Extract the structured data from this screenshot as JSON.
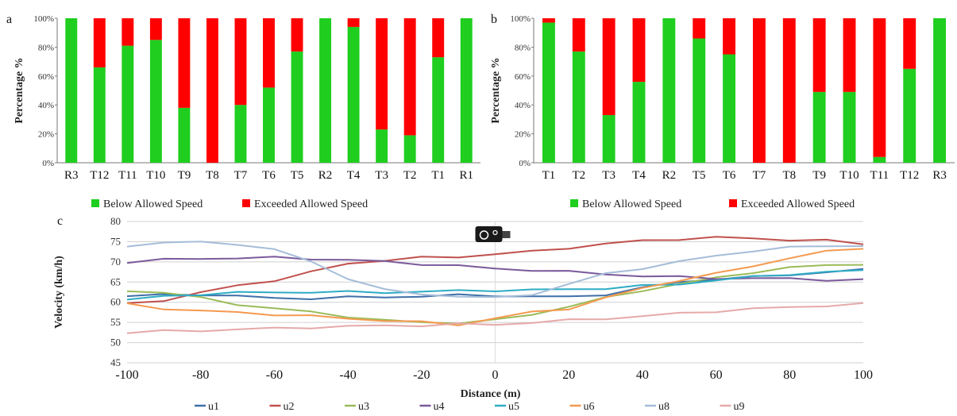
{
  "chart_data": [
    {
      "panel_label": "a",
      "type": "bar",
      "stacked": true,
      "ylabel": "Percentage %",
      "ylim": [
        0,
        100
      ],
      "yticks": [
        "0%",
        "20%",
        "40%",
        "60%",
        "80%",
        "100%"
      ],
      "categories": [
        "R3",
        "T12",
        "T11",
        "T10",
        "T9",
        "T8",
        "T7",
        "T6",
        "T5",
        "R2",
        "T4",
        "T3",
        "T2",
        "T1",
        "R1"
      ],
      "series": [
        {
          "name": "Below Allowed Speed",
          "color": "#1fce1f",
          "values": [
            100,
            66,
            81,
            85,
            38,
            0,
            40,
            52,
            77,
            100,
            94,
            23,
            19,
            73,
            100
          ]
        },
        {
          "name": "Exceeded Allowed Speed",
          "color": "#ff0000",
          "values": [
            0,
            34,
            19,
            15,
            62,
            100,
            60,
            48,
            23,
            0,
            6,
            77,
            81,
            27,
            0
          ]
        }
      ],
      "legend": "bottom"
    },
    {
      "panel_label": "b",
      "type": "bar",
      "stacked": true,
      "ylabel": "Percentage %",
      "ylim": [
        0,
        100
      ],
      "yticks": [
        "0%",
        "20%",
        "40%",
        "60%",
        "80%",
        "100%"
      ],
      "categories": [
        "T1",
        "T2",
        "T3",
        "T4",
        "R2",
        "T5",
        "T6",
        "T7",
        "T8",
        "T9",
        "T10",
        "T11",
        "T12",
        "R3"
      ],
      "series": [
        {
          "name": "Below Allowed Speed",
          "color": "#1fce1f",
          "values": [
            97,
            77,
            33,
            56,
            100,
            86,
            75,
            0,
            0,
            49,
            49,
            4,
            65,
            100
          ]
        },
        {
          "name": "Exceeded Allowed Speed",
          "color": "#ff0000",
          "values": [
            3,
            23,
            67,
            44,
            0,
            14,
            25,
            100,
            100,
            51,
            51,
            96,
            35,
            0
          ]
        }
      ],
      "legend": "bottom"
    },
    {
      "panel_label": "c",
      "type": "line",
      "xlabel": "Distance (m)",
      "ylabel": "Velocity (km/h)",
      "xlim": [
        -100,
        100
      ],
      "ylim": [
        45,
        80
      ],
      "xticks": [
        "-100",
        "-80",
        "-60",
        "-40",
        "-20",
        "0",
        "20",
        "40",
        "60",
        "80",
        "100"
      ],
      "yticks": [
        "45",
        "50",
        "55",
        "60",
        "65",
        "70",
        "75",
        "80"
      ],
      "grid": true,
      "annotation": "camera-icon",
      "x": [
        -100,
        -90,
        -80,
        -70,
        -60,
        -50,
        -40,
        -30,
        -20,
        -10,
        0,
        10,
        20,
        30,
        40,
        50,
        60,
        70,
        80,
        90,
        100
      ],
      "series": [
        {
          "name": "u1",
          "color": "#3f6fa8",
          "values": [
            61.5,
            61.8,
            62,
            61.5,
            61,
            61,
            61.2,
            61.3,
            61.5,
            61.7,
            61.7,
            61.4,
            61.3,
            62,
            63.5,
            65,
            65.8,
            66.2,
            66.8,
            67.5,
            68
          ]
        },
        {
          "name": "u2",
          "color": "#c0504d",
          "values": [
            59.5,
            60.5,
            62.5,
            64,
            65.5,
            67.5,
            69.5,
            70.5,
            71,
            71.2,
            72,
            72.5,
            73.5,
            74.5,
            75.2,
            75.7,
            76,
            75.8,
            75.5,
            75.2,
            74.5
          ]
        },
        {
          "name": "u3",
          "color": "#9bbb59",
          "values": [
            62.8,
            62.5,
            61,
            59.5,
            58.5,
            57.5,
            56.5,
            55.5,
            55,
            55,
            55.5,
            57,
            59,
            61,
            63,
            64.5,
            66,
            67.5,
            68.5,
            69.2,
            69.5
          ]
        },
        {
          "name": "u4",
          "color": "#7a5a9b",
          "values": [
            70,
            70.5,
            70.8,
            71,
            71,
            70.8,
            70.5,
            70,
            69.5,
            69,
            68.3,
            68,
            67.5,
            67,
            66.5,
            66.2,
            66,
            65.9,
            65.8,
            65.6,
            65.5
          ]
        },
        {
          "name": "u5",
          "color": "#2eacc4",
          "values": [
            60.5,
            61.5,
            62,
            62.3,
            62.5,
            62.5,
            62.5,
            62.5,
            62.6,
            62.8,
            63,
            63,
            63.2,
            63.5,
            64,
            64.5,
            65.5,
            66.2,
            67,
            67.5,
            67.8
          ]
        },
        {
          "name": "u6",
          "color": "#f49a4f",
          "values": [
            59.5,
            58.5,
            57.8,
            57.5,
            57,
            56.5,
            56,
            55.5,
            55,
            54.5,
            56,
            57.5,
            58.5,
            61,
            63.5,
            65.5,
            67,
            69,
            71,
            72.5,
            73.5
          ]
        },
        {
          "name": "u8",
          "color": "#a5bdd8",
          "values": [
            74,
            74.8,
            74.8,
            74.5,
            73,
            70,
            66,
            63,
            62,
            61.5,
            61,
            62,
            64.5,
            67,
            68.5,
            70,
            71.5,
            72.8,
            73.5,
            74,
            74
          ]
        },
        {
          "name": "u9",
          "color": "#e6a9a9",
          "values": [
            52.5,
            52.8,
            53,
            53.3,
            53.5,
            53.8,
            54,
            54.2,
            54.3,
            54.5,
            54.5,
            55,
            55.5,
            56,
            56.5,
            57.2,
            57.8,
            58.3,
            58.8,
            59.2,
            59.5
          ]
        }
      ],
      "legend": "bottom"
    }
  ]
}
